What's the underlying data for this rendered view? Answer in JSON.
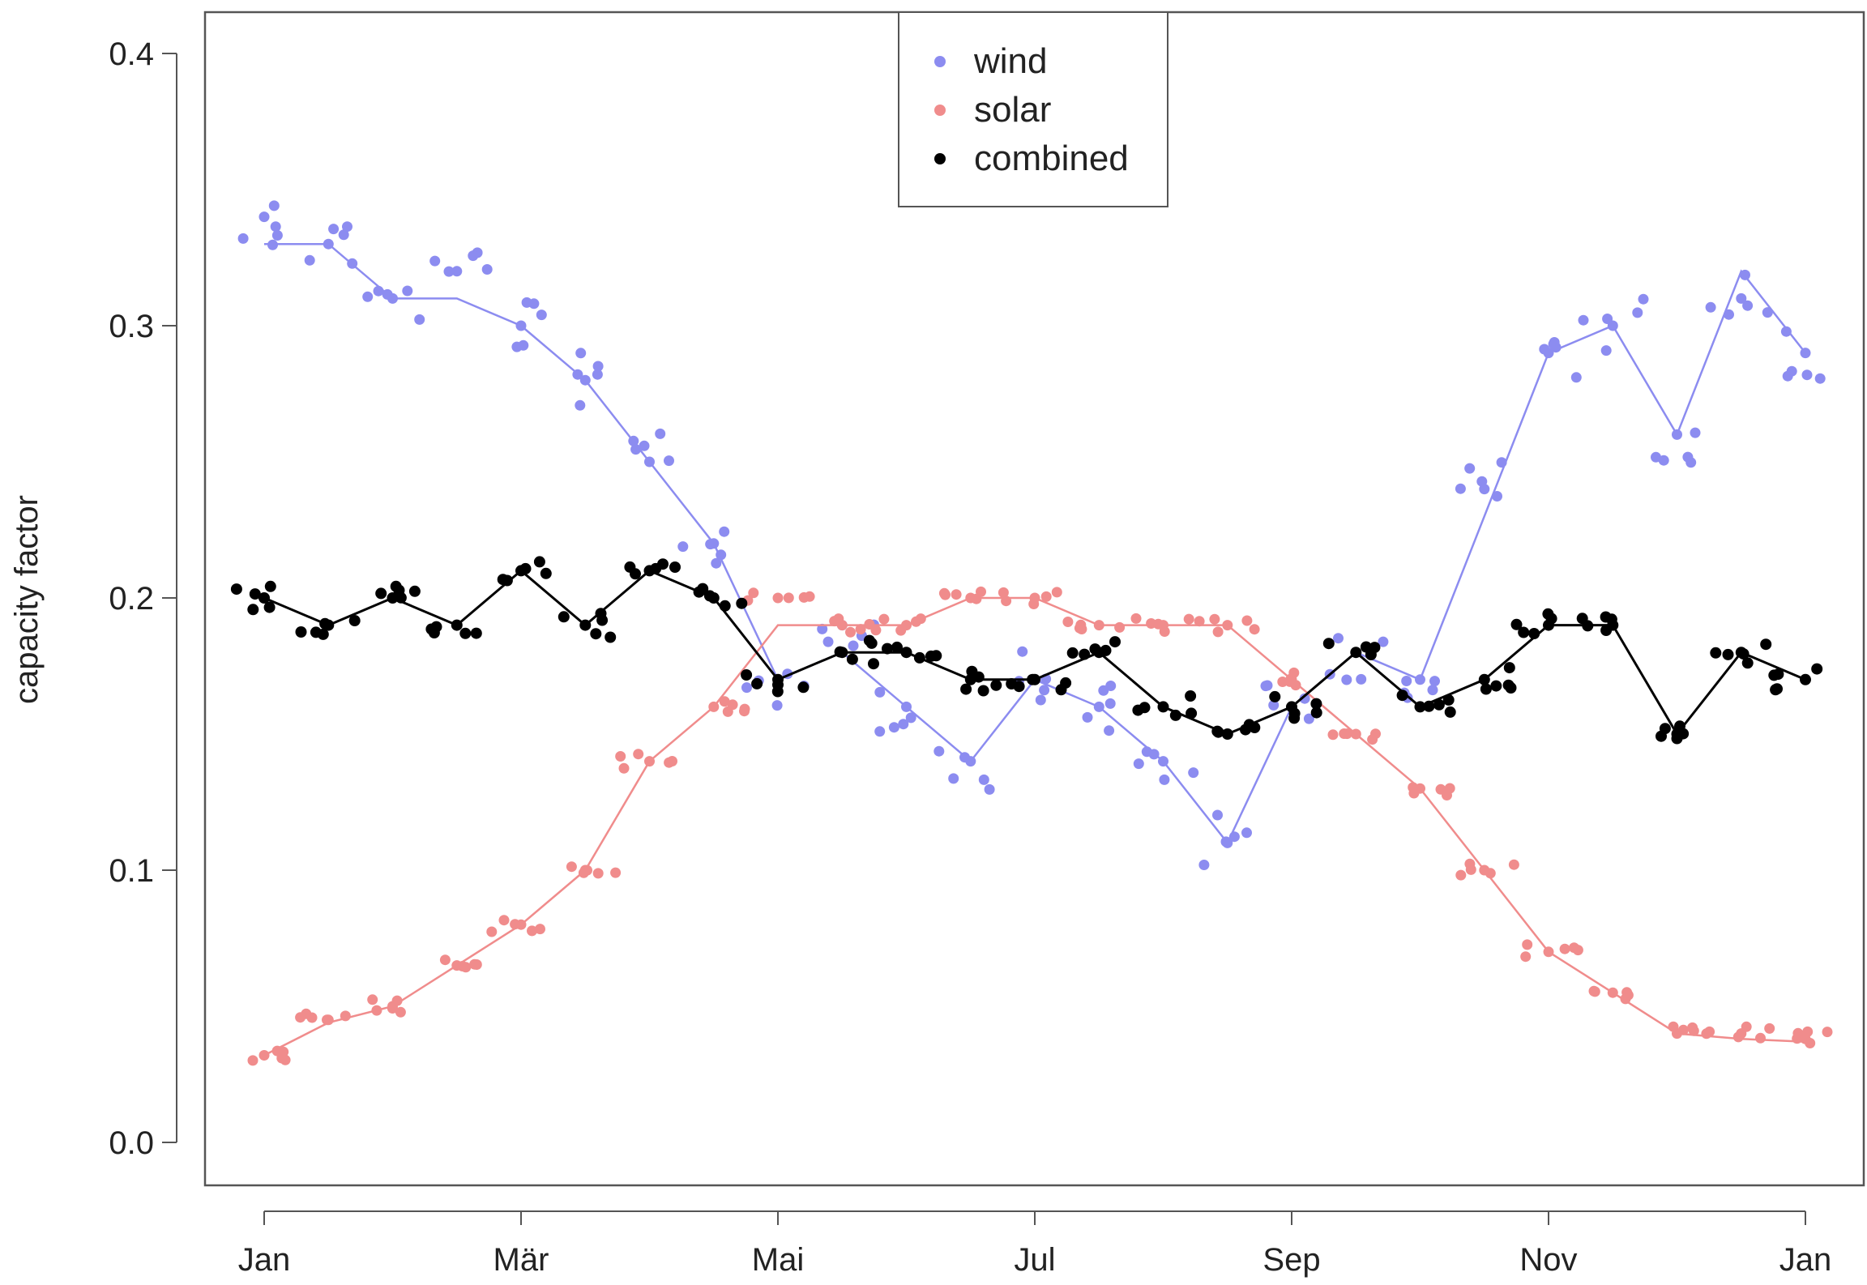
{
  "chart_data": {
    "type": "scatter",
    "title": "",
    "xlabel": "",
    "ylabel": "capacity factor",
    "x_ticks": [
      "Jan",
      "Mär",
      "Mai",
      "Jul",
      "Sep",
      "Nov",
      "Jan"
    ],
    "y_ticks": [
      "0.0",
      "0.1",
      "0.2",
      "0.3",
      "0.4"
    ],
    "xlim": [
      "Jan",
      "Jan"
    ],
    "ylim": [
      0.0,
      0.4
    ],
    "grid": false,
    "legend_position": "top-center",
    "colors": {
      "wind": "#8c8cf0",
      "solar": "#f08c8c",
      "combined": "#000000"
    },
    "series": [
      {
        "name": "wind",
        "x": [
          "Jan",
          "Jan",
          "Feb",
          "Feb",
          "Mär",
          "Mär",
          "Apr",
          "Apr",
          "Mai",
          "Mai",
          "Jun",
          "Jun",
          "Jul",
          "Jul",
          "Aug",
          "Aug",
          "Sep",
          "Sep",
          "Okt",
          "Okt",
          "Nov",
          "Nov",
          "Dez",
          "Dez",
          "Jan"
        ],
        "values": [
          0.34,
          0.33,
          0.31,
          0.32,
          0.3,
          0.28,
          0.25,
          0.22,
          0.17,
          0.19,
          0.16,
          0.14,
          0.17,
          0.16,
          0.14,
          0.11,
          0.16,
          0.18,
          0.17,
          0.24,
          0.29,
          0.3,
          0.26,
          0.31,
          0.29
        ],
        "smooth_values": [
          0.33,
          0.33,
          0.31,
          0.31,
          0.3,
          0.28,
          0.25,
          0.22,
          0.17,
          0.18,
          0.16,
          0.14,
          0.17,
          0.16,
          0.14,
          0.11,
          0.16,
          0.18,
          0.17,
          0.23,
          0.29,
          0.3,
          0.26,
          0.32,
          0.29
        ]
      },
      {
        "name": "solar",
        "x": [
          "Jan",
          "Jan",
          "Feb",
          "Feb",
          "Mär",
          "Mär",
          "Apr",
          "Apr",
          "Mai",
          "Mai",
          "Jun",
          "Jun",
          "Jul",
          "Jul",
          "Aug",
          "Aug",
          "Sep",
          "Sep",
          "Okt",
          "Okt",
          "Nov",
          "Nov",
          "Dez",
          "Dez",
          "Jan"
        ],
        "values": [
          0.032,
          0.045,
          0.05,
          0.065,
          0.08,
          0.1,
          0.14,
          0.16,
          0.2,
          0.19,
          0.19,
          0.2,
          0.2,
          0.19,
          0.19,
          0.19,
          0.17,
          0.15,
          0.13,
          0.1,
          0.07,
          0.055,
          0.04,
          0.04,
          0.038
        ],
        "smooth_values": [
          0.032,
          0.044,
          0.05,
          0.065,
          0.08,
          0.1,
          0.14,
          0.16,
          0.19,
          0.19,
          0.19,
          0.2,
          0.2,
          0.19,
          0.19,
          0.19,
          0.17,
          0.15,
          0.13,
          0.1,
          0.07,
          0.055,
          0.04,
          0.038,
          0.037
        ]
      },
      {
        "name": "combined",
        "x": [
          "Jan",
          "Jan",
          "Feb",
          "Feb",
          "Mär",
          "Mär",
          "Apr",
          "Apr",
          "Mai",
          "Mai",
          "Jun",
          "Jun",
          "Jul",
          "Jul",
          "Aug",
          "Aug",
          "Sep",
          "Sep",
          "Okt",
          "Okt",
          "Nov",
          "Nov",
          "Dez",
          "Dez",
          "Jan"
        ],
        "values": [
          0.2,
          0.19,
          0.2,
          0.19,
          0.21,
          0.19,
          0.21,
          0.2,
          0.17,
          0.18,
          0.18,
          0.17,
          0.17,
          0.18,
          0.16,
          0.15,
          0.16,
          0.18,
          0.16,
          0.17,
          0.19,
          0.19,
          0.15,
          0.18,
          0.17
        ],
        "smooth_values": [
          0.2,
          0.19,
          0.2,
          0.19,
          0.21,
          0.19,
          0.21,
          0.2,
          0.17,
          0.18,
          0.18,
          0.17,
          0.17,
          0.18,
          0.16,
          0.15,
          0.16,
          0.18,
          0.16,
          0.17,
          0.19,
          0.19,
          0.15,
          0.18,
          0.17
        ]
      }
    ]
  }
}
